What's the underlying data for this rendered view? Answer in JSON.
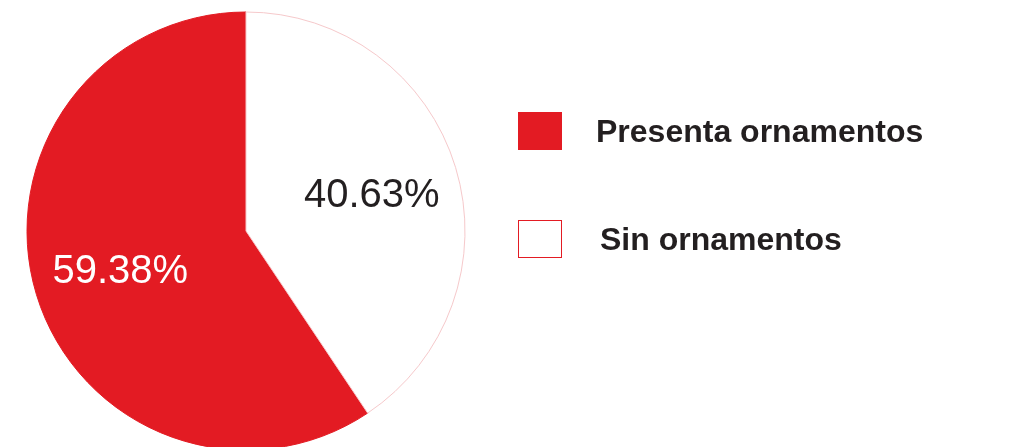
{
  "chart_data": {
    "type": "pie",
    "categories": [
      "Presenta ornamentos",
      "Sin ornamentos"
    ],
    "values": [
      59.38,
      40.63
    ],
    "colors": [
      "#e31b23",
      "#ffffff"
    ],
    "value_labels": [
      "59.38%",
      "40.63%"
    ],
    "legend": "right"
  }
}
